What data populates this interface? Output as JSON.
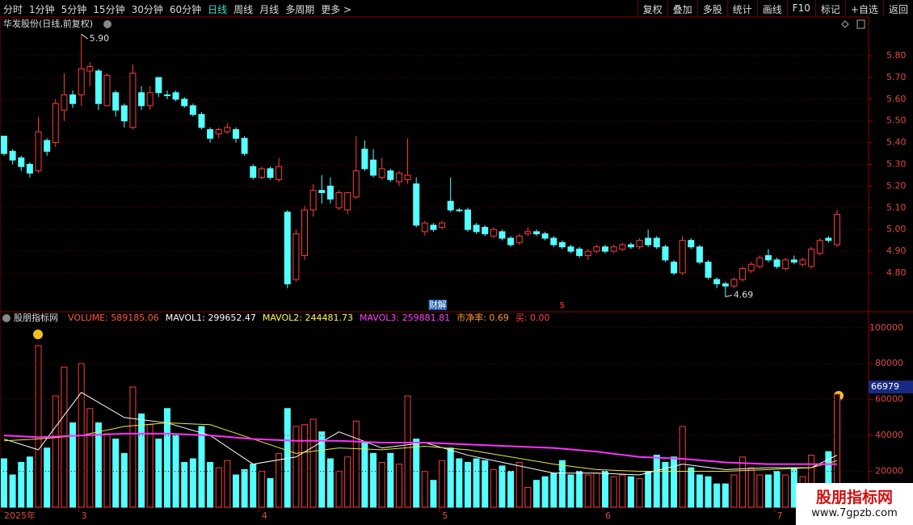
{
  "toolbar": {
    "left": [
      "分时",
      "1分钟",
      "5分钟",
      "15分钟",
      "30分钟",
      "60分钟",
      "日线",
      "周线",
      "月线",
      "多周期",
      "更多 >"
    ],
    "active": 6,
    "right": [
      "复权",
      "叠加",
      "多股",
      "统计",
      "画线",
      "F10",
      "标记",
      "+自选",
      "返回"
    ]
  },
  "chart_data": [
    {
      "type": "candlestick",
      "title": "华发股份(日线,前复权)",
      "open": [
        5.43,
        5.36,
        5.33,
        5.3,
        5.27,
        5.41,
        5.4,
        5.55,
        5.62,
        5.62,
        5.73,
        5.73,
        5.57,
        5.63,
        5.57,
        5.47,
        5.63,
        5.57,
        5.7,
        5.62,
        5.63,
        5.6,
        5.57,
        5.53,
        5.46,
        5.44,
        5.45,
        5.46,
        5.42,
        5.29,
        5.24,
        5.28,
        5.23,
        5.08,
        4.77,
        4.88,
        5.09,
        5.18,
        5.2,
        5.1,
        5.09,
        5.15,
        5.37,
        5.32,
        5.24,
        5.27,
        5.22,
        5.23,
        5.21,
        4.99,
        5.02,
        5.01,
        5.13,
        5.09,
        5.09,
        5.02,
        5.01,
        4.97,
        4.99,
        4.96,
        4.94,
        4.98,
        4.99,
        4.98,
        4.96,
        4.94,
        4.92,
        4.91,
        4.88,
        4.9,
        4.92,
        4.9,
        4.91,
        4.93,
        4.92,
        4.96,
        4.96,
        4.92,
        4.85,
        4.8,
        4.95,
        4.92,
        4.85,
        4.77,
        4.75,
        4.74,
        4.77,
        4.81,
        4.83,
        4.88,
        4.86,
        4.82,
        4.86,
        4.84,
        4.83,
        4.89,
        4.96,
        4.93
      ],
      "high": [
        5.43,
        5.37,
        5.34,
        5.31,
        5.52,
        5.42,
        5.6,
        5.72,
        5.64,
        5.9,
        5.77,
        5.74,
        5.72,
        5.64,
        5.58,
        5.76,
        5.66,
        5.66,
        5.7,
        5.64,
        5.64,
        5.61,
        5.58,
        5.54,
        5.47,
        5.47,
        5.49,
        5.47,
        5.43,
        5.3,
        5.29,
        5.29,
        5.33,
        5.09,
        5.0,
        5.11,
        5.21,
        5.25,
        5.24,
        5.18,
        5.17,
        5.43,
        5.41,
        5.37,
        5.33,
        5.28,
        5.27,
        5.42,
        5.24,
        5.04,
        5.03,
        5.04,
        5.24,
        5.1,
        5.1,
        5.03,
        5.02,
        5.01,
        5.0,
        4.97,
        4.98,
        5.01,
        5.0,
        4.99,
        4.97,
        4.95,
        4.93,
        4.92,
        4.91,
        4.93,
        4.93,
        4.93,
        4.94,
        4.94,
        4.96,
        5.0,
        4.97,
        4.93,
        4.86,
        4.97,
        4.96,
        4.93,
        4.86,
        4.78,
        4.76,
        4.78,
        4.83,
        4.85,
        4.88,
        4.91,
        4.87,
        4.87,
        4.88,
        4.87,
        4.92,
        4.96,
        4.97,
        5.09
      ],
      "low": [
        5.34,
        5.3,
        5.27,
        5.24,
        5.26,
        5.34,
        5.38,
        5.5,
        5.56,
        5.57,
        5.66,
        5.55,
        5.57,
        5.52,
        5.47,
        5.46,
        5.55,
        5.55,
        5.61,
        5.6,
        5.59,
        5.56,
        5.52,
        5.46,
        5.4,
        5.42,
        5.44,
        5.4,
        5.34,
        5.23,
        5.23,
        5.23,
        5.22,
        4.73,
        4.76,
        4.86,
        5.06,
        5.12,
        5.12,
        5.09,
        5.07,
        5.14,
        5.27,
        5.24,
        5.23,
        5.22,
        5.2,
        5.21,
        5.01,
        4.97,
        4.99,
        5.0,
        5.08,
        5.08,
        4.99,
        4.98,
        4.97,
        4.96,
        4.95,
        4.92,
        4.93,
        4.97,
        4.97,
        4.95,
        4.92,
        4.91,
        4.89,
        4.87,
        4.86,
        4.89,
        4.89,
        4.89,
        4.9,
        4.91,
        4.91,
        4.92,
        4.91,
        4.85,
        4.79,
        4.79,
        4.91,
        4.84,
        4.77,
        4.73,
        4.69,
        4.73,
        4.76,
        4.8,
        4.82,
        4.85,
        4.82,
        4.81,
        4.84,
        4.83,
        4.82,
        4.88,
        4.94,
        4.92
      ],
      "close": [
        5.35,
        5.32,
        5.29,
        5.26,
        5.45,
        5.36,
        5.58,
        5.62,
        5.58,
        5.74,
        5.75,
        5.58,
        5.71,
        5.55,
        5.5,
        5.72,
        5.57,
        5.63,
        5.63,
        5.62,
        5.6,
        5.57,
        5.53,
        5.47,
        5.42,
        5.46,
        5.47,
        5.42,
        5.35,
        5.24,
        5.28,
        5.24,
        5.29,
        4.75,
        4.98,
        5.09,
        5.18,
        5.17,
        5.14,
        5.17,
        5.17,
        5.27,
        5.28,
        5.25,
        5.28,
        5.23,
        5.26,
        5.25,
        5.02,
        5.03,
        5.0,
        5.03,
        5.09,
        5.09,
        5.0,
        4.99,
        4.98,
        5.0,
        4.96,
        4.93,
        4.97,
        4.99,
        4.98,
        4.96,
        4.93,
        4.92,
        4.9,
        4.88,
        4.9,
        4.92,
        4.9,
        4.92,
        4.93,
        4.92,
        4.95,
        4.93,
        4.92,
        4.86,
        4.8,
        4.95,
        4.92,
        4.85,
        4.78,
        4.75,
        4.74,
        4.77,
        4.82,
        4.84,
        4.87,
        4.86,
        4.83,
        4.86,
        4.85,
        4.86,
        4.91,
        4.95,
        4.95,
        5.07
      ],
      "ylim": [
        4.625,
        5.975
      ],
      "yticks": [
        {
          "value": 4.8,
          "label": "4.80"
        },
        {
          "value": 4.9,
          "label": "4.90"
        },
        {
          "value": 5.0,
          "label": "5.00"
        },
        {
          "value": 5.1,
          "label": "5.10"
        },
        {
          "value": 5.2,
          "label": "5.20"
        },
        {
          "value": 5.3,
          "label": "5.30"
        },
        {
          "value": 5.4,
          "label": "5.40"
        },
        {
          "value": 5.5,
          "label": "5.50"
        },
        {
          "value": 5.6,
          "label": "5.60"
        },
        {
          "value": 5.7,
          "label": "5.70"
        },
        {
          "value": 5.8,
          "label": "5.80"
        }
      ],
      "annotations": [
        {
          "index": 9,
          "value": 5.9,
          "label": "5.90"
        },
        {
          "index": 84,
          "value": 4.69,
          "label": "4.69"
        }
      ],
      "events": [
        {
          "index": 50,
          "label": "财",
          "color": "#ffffff"
        },
        {
          "index": 51,
          "label": "解",
          "color": "#ffffff"
        },
        {
          "index": 65,
          "label": "$",
          "color": "#ff3030"
        }
      ]
    },
    {
      "type": "bar",
      "title": "股朋指标网",
      "indicators": [
        {
          "text": "VOLUME: 589185.06",
          "color": "#ff5a3c"
        },
        {
          "text": "MAVOL1: 299652.47",
          "color": "#ffffff"
        },
        {
          "text": "MAVOL2: 244481.73",
          "color": "#ffff40"
        },
        {
          "text": "MAVOL3: 259881.81",
          "color": "#ff40ff"
        },
        {
          "text": "市净率: 0.69",
          "color": "#ff9a30"
        },
        {
          "text": "买: 0.00",
          "color": "#ff4040"
        }
      ],
      "values": [
        27000,
        18000,
        25000,
        28000,
        90000,
        33000,
        62000,
        78000,
        47000,
        80000,
        55000,
        47000,
        41000,
        38000,
        30000,
        67000,
        52000,
        46000,
        38000,
        55000,
        40000,
        25000,
        27000,
        45000,
        25000,
        22000,
        26000,
        18000,
        21000,
        24000,
        20000,
        16000,
        30000,
        55000,
        45000,
        46000,
        49000,
        42000,
        27000,
        20000,
        28000,
        48000,
        36000,
        30000,
        25000,
        30000,
        24000,
        62000,
        38000,
        20000,
        15000,
        26000,
        33000,
        27000,
        25000,
        27000,
        26000,
        21000,
        23000,
        20000,
        25000,
        11000,
        15000,
        17000,
        19000,
        26000,
        18000,
        20000,
        18000,
        19000,
        20000,
        17000,
        18000,
        17000,
        16000,
        20000,
        29000,
        25000,
        28000,
        45000,
        22000,
        18000,
        17000,
        13000,
        13000,
        18000,
        28000,
        22000,
        18000,
        18000,
        20000,
        18000,
        22000,
        17000,
        29000,
        12000,
        31000,
        63000
      ],
      "series": [
        {
          "color": "#ffffff",
          "x": [
            0,
            4,
            9,
            14,
            19,
            24,
            29,
            34,
            39,
            44,
            49,
            54,
            59,
            64,
            69,
            74,
            79,
            84,
            89,
            94,
            97
          ],
          "values": [
            38000,
            32000,
            64000,
            50000,
            47000,
            40000,
            24000,
            28000,
            42000,
            33000,
            36000,
            29000,
            24000,
            19000,
            19000,
            18000,
            24000,
            21000,
            22000,
            22000,
            29000
          ]
        },
        {
          "color": "#e8e840",
          "x": [
            0,
            4,
            9,
            14,
            19,
            24,
            29,
            34,
            39,
            44,
            49,
            54,
            59,
            64,
            69,
            74,
            79,
            84,
            89,
            94,
            97
          ],
          "values": [
            37000,
            38000,
            40000,
            45000,
            47000,
            46000,
            38000,
            30000,
            33000,
            32000,
            34000,
            32000,
            28000,
            24000,
            21000,
            20000,
            20000,
            20000,
            21000,
            22000,
            26000
          ]
        },
        {
          "color": "#ff30ff",
          "x": [
            0,
            4,
            9,
            14,
            19,
            24,
            29,
            34,
            39,
            44,
            49,
            54,
            59,
            64,
            69,
            74,
            79,
            84,
            89,
            94,
            97
          ],
          "values": [
            40000,
            39000,
            40000,
            41000,
            41000,
            40000,
            38000,
            37000,
            37000,
            36000,
            36000,
            35000,
            34000,
            33000,
            31000,
            28000,
            27000,
            25000,
            24000,
            24000,
            24000
          ]
        }
      ],
      "ylim": [
        0,
        108000
      ],
      "yticks": [
        20000,
        40000,
        60000,
        80000,
        100000
      ],
      "last_marker": 66979,
      "date_labels": [
        {
          "index": 0,
          "label": "2025年"
        },
        {
          "index": 9,
          "label": "3"
        },
        {
          "index": 30,
          "label": "4"
        },
        {
          "index": 51,
          "label": "5"
        },
        {
          "index": 70,
          "label": "6"
        },
        {
          "index": 90,
          "label": "7"
        }
      ]
    }
  ],
  "watermark": {
    "title": "股朋指标网",
    "url": "www.7gpzb.com"
  }
}
